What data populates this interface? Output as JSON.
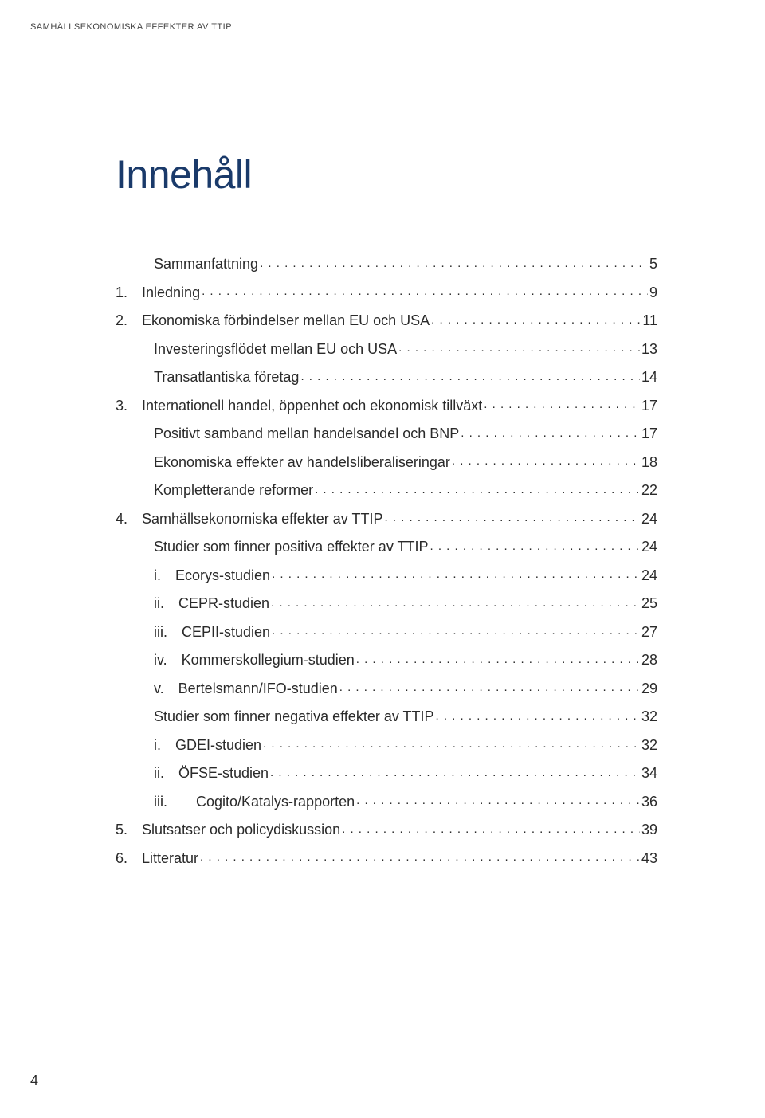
{
  "header": "SAMHÄLLSEKONOMISKA EFFEKTER AV TTIP",
  "title": "Innehåll",
  "page_number": "4",
  "colors": {
    "title_color": "#1a3a6a",
    "text_color": "#2a2a2a",
    "background": "#ffffff"
  },
  "typography": {
    "title_fontsize": 50,
    "entry_fontsize": 18,
    "header_fontsize": 11
  },
  "toc": [
    {
      "label": "Sammanfattning",
      "page": "5",
      "indent": 1
    },
    {
      "label": "1.  Inledning",
      "page": "9",
      "indent": 0
    },
    {
      "label": "2.  Ekonomiska förbindelser mellan EU och USA",
      "page": "11",
      "indent": 0
    },
    {
      "label": "Investeringsflödet mellan EU och USA",
      "page": "13",
      "indent": 1
    },
    {
      "label": "Transatlantiska företag",
      "page": "14",
      "indent": 1
    },
    {
      "label": "3.  Internationell handel, öppenhet och ekonomisk tillväxt",
      "page": "17",
      "indent": 0
    },
    {
      "label": "Positivt samband mellan handelsandel och BNP",
      "page": "17",
      "indent": 1
    },
    {
      "label": "Ekonomiska effekter av handelsliberaliseringar",
      "page": "18",
      "indent": 1
    },
    {
      "label": "Kompletterande reformer",
      "page": "22",
      "indent": 1
    },
    {
      "label": "4.  Samhällsekonomiska effekter av TTIP",
      "page": "24",
      "indent": 0
    },
    {
      "label": "Studier som finner positiva effekter av TTIP",
      "page": "24",
      "indent": 1
    },
    {
      "label": "i. Ecorys-studien",
      "page": "24",
      "indent": 2
    },
    {
      "label": "ii. CEPR-studien",
      "page": "25",
      "indent": 2
    },
    {
      "label": "iii. CEPII-studien",
      "page": "27",
      "indent": 2
    },
    {
      "label": "iv. Kommerskollegium-studien",
      "page": "28",
      "indent": 2
    },
    {
      "label": "v. Bertelsmann/IFO-studien",
      "page": "29",
      "indent": 2
    },
    {
      "label": "Studier som finner negativa effekter av TTIP",
      "page": "32",
      "indent": 1
    },
    {
      "label": "i. GDEI-studien",
      "page": "32",
      "indent": 2
    },
    {
      "label": "ii. ÖFSE-studien",
      "page": "34",
      "indent": 2
    },
    {
      "label": "iii.  Cogito/Katalys-rapporten",
      "page": "36",
      "indent": 2
    },
    {
      "label": "5.  Slutsatser och policydiskussion",
      "page": "39",
      "indent": 0
    },
    {
      "label": "6.  Litteratur",
      "page": "43",
      "indent": 0
    }
  ]
}
